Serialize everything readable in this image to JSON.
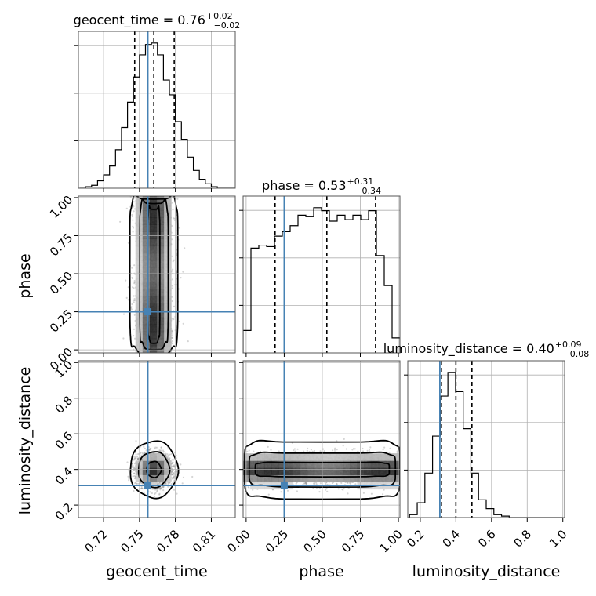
{
  "chart_data": {
    "type": "corner",
    "parameters": [
      "geocent_time",
      "phase",
      "luminosity_distance"
    ],
    "truths": {
      "geocent_time": 0.757,
      "phase": 0.25,
      "luminosity_distance": 0.31
    },
    "ranges": {
      "geocent_time": [
        0.699,
        0.83
      ],
      "phase": [
        -0.02,
        1.01
      ],
      "luminosity_distance": [
        0.13,
        1.01
      ]
    },
    "ticks": {
      "geocent_time": {
        "values": [
          0.72,
          0.75,
          0.78,
          0.81
        ],
        "labels": [
          "0.72",
          "0.75",
          "0.78",
          "0.81"
        ]
      },
      "phase": {
        "values": [
          0.0,
          0.25,
          0.5,
          0.75,
          1.0
        ],
        "labels": [
          "0.00",
          "0.25",
          "0.50",
          "0.75",
          "1.00"
        ]
      },
      "luminosity_distance": {
        "values": [
          0.2,
          0.4,
          0.6,
          0.8,
          1.0
        ],
        "labels": [
          "0.2",
          "0.4",
          "0.6",
          "0.8",
          "1.0"
        ]
      }
    },
    "titles": [
      {
        "param": "geocent_time",
        "text": "geocent_time = 0.76",
        "sup": "+0.02",
        "sub": "−0.02"
      },
      {
        "param": "phase",
        "text": "phase = 0.53",
        "sup": "+0.31",
        "sub": "−0.34"
      },
      {
        "param": "luminosity_distance",
        "text": "luminosity_distance = 0.40",
        "sup": "+0.09",
        "sub": "−0.08"
      }
    ],
    "quantiles": {
      "geocent_time": [
        0.746,
        0.762,
        0.779
      ],
      "phase": [
        0.19,
        0.53,
        0.85
      ],
      "luminosity_distance": [
        0.32,
        0.4,
        0.49
      ]
    },
    "histograms": {
      "geocent_time": {
        "edges_range": [
          0.7,
          0.83
        ],
        "bins": 26,
        "counts": [
          0,
          1,
          2,
          5,
          9,
          15,
          26,
          41,
          58,
          75,
          90,
          97,
          98,
          90,
          73,
          63,
          45,
          33,
          21,
          12,
          6,
          3,
          1,
          0,
          0,
          0
        ]
      },
      "phase": {
        "edges_range": [
          -0.02,
          1.01
        ],
        "bins": 20,
        "counts": [
          15,
          70,
          72,
          71,
          78,
          81,
          85,
          92,
          91,
          97,
          95,
          88,
          92,
          89,
          92,
          89,
          95,
          65,
          45,
          10
        ]
      },
      "luminosity_distance": {
        "edges_range": [
          0.14,
          1.0
        ],
        "bins": 20,
        "counts": [
          2,
          10,
          30,
          55,
          82,
          98,
          85,
          60,
          30,
          12,
          6,
          2,
          1,
          0,
          0,
          0,
          0,
          0,
          0,
          0
        ]
      }
    },
    "grid": true,
    "colors": {
      "truth": "#4682b4",
      "line": "#000000",
      "grid": "#b0b0b0",
      "scatter": "#888888"
    }
  }
}
